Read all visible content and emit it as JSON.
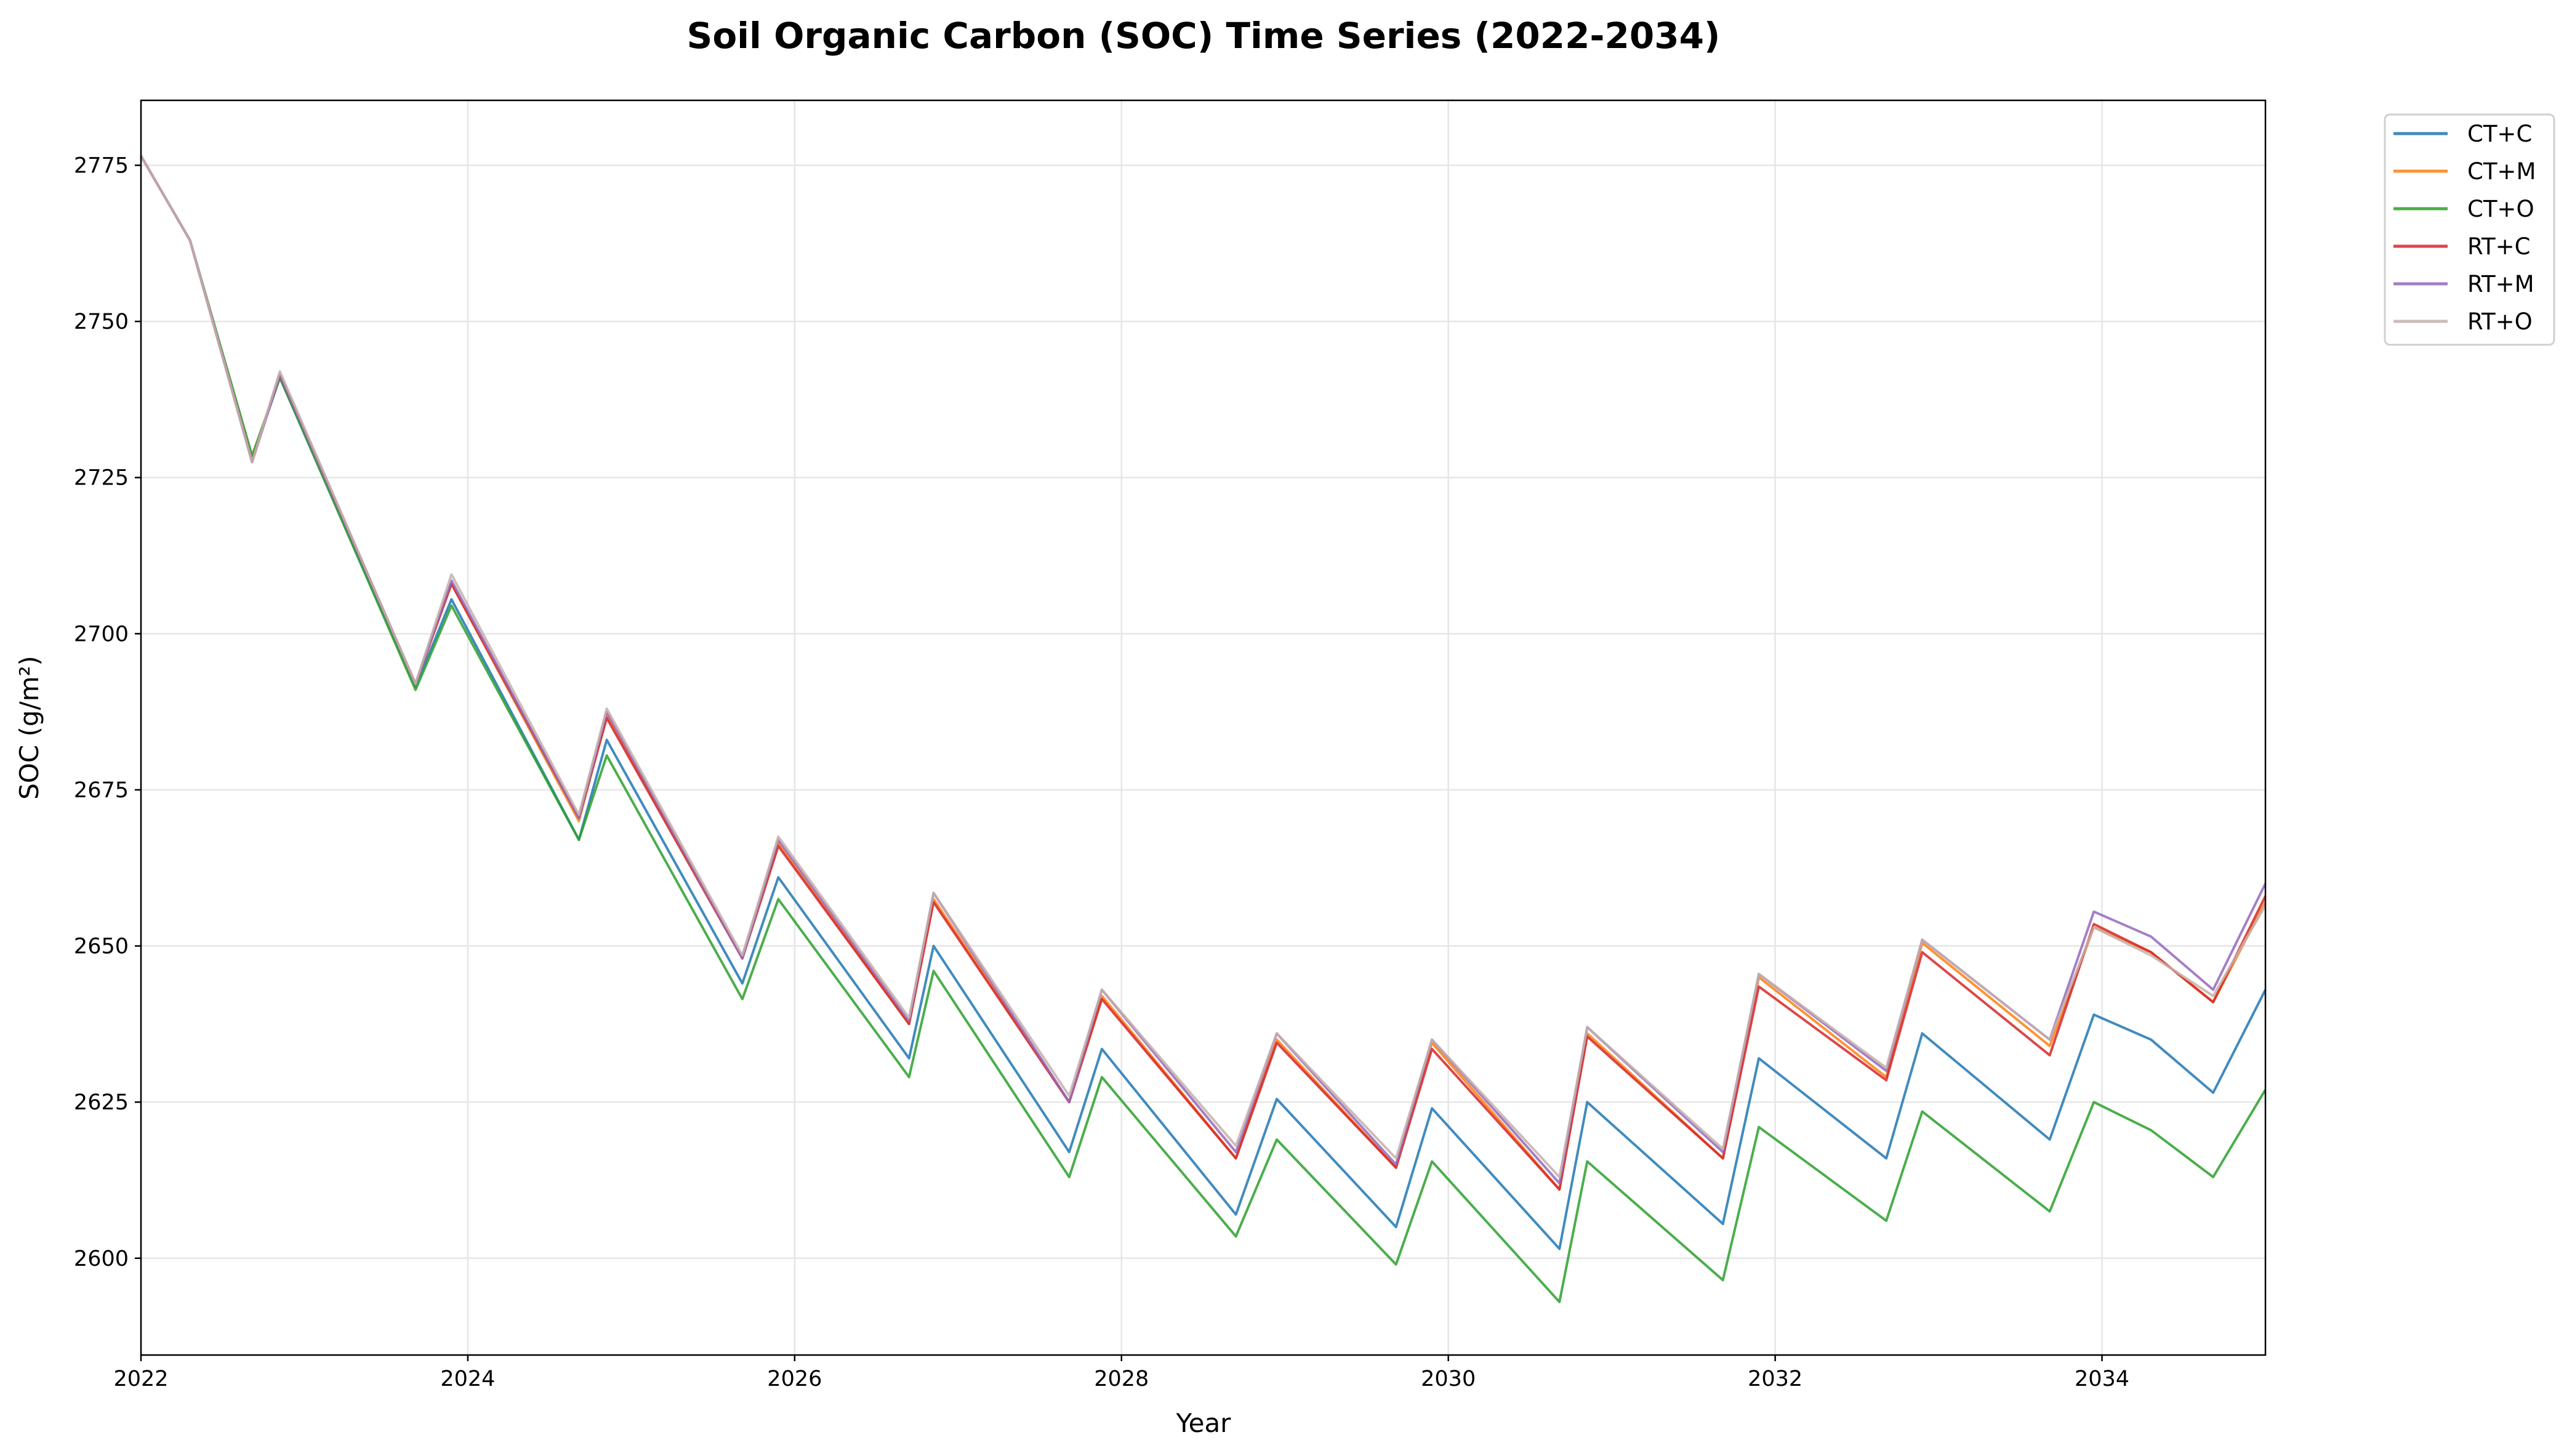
{
  "chart_data": {
    "type": "line",
    "title": "Soil Organic Carbon (SOC) Time Series (2022-2034)",
    "xlabel": "Year",
    "ylabel": "SOC (g/m²)",
    "xlim": [
      2022,
      2035
    ],
    "ylim": [
      2584.5,
      2785.4
    ],
    "xticks": [
      "2022",
      "2024",
      "2026",
      "2028",
      "2030",
      "2032",
      "2034"
    ],
    "yticks": [
      "2600",
      "2625",
      "2650",
      "2675",
      "2700",
      "2725",
      "2750",
      "2775"
    ],
    "grid": true,
    "legend_position": "outside-top-right",
    "x": [
      2022,
      2022.3,
      2022.68,
      2022.85,
      2023.68,
      2023.9,
      2024.68,
      2024.85,
      2025.68,
      2025.9,
      2026.7,
      2026.85,
      2027.68,
      2027.88,
      2028.7,
      2028.95,
      2029.68,
      2029.9,
      2030.68,
      2030.85,
      2031.68,
      2031.9,
      2032.68,
      2032.9,
      2033.68,
      2033.95,
      2034.3,
      2034.68,
      2035
    ],
    "series": [
      {
        "name": "CT+C",
        "color": "#1f77b4",
        "values": [
          2776.5,
          2763,
          2728,
          2741,
          2691.5,
          2705.5,
          2667,
          2683,
          2644,
          2661,
          2632,
          2650,
          2617,
          2633.5,
          2607,
          2625.5,
          2605,
          2624,
          2601.5,
          2625,
          2605.5,
          2632,
          2616,
          2636,
          2619,
          2639,
          2635,
          2626.5,
          2643
        ]
      },
      {
        "name": "CT+M",
        "color": "#ff7f0e",
        "values": [
          2776.5,
          2763,
          2728,
          2741.5,
          2692,
          2708,
          2670,
          2687,
          2648,
          2666.5,
          2637.5,
          2657.5,
          2625,
          2642,
          2616,
          2635,
          2614.5,
          2634.5,
          2611,
          2636,
          2616,
          2645,
          2629,
          2650.5,
          2634,
          2653,
          2649,
          2641,
          2657
        ]
      },
      {
        "name": "CT+O",
        "color": "#2ca02c",
        "values": [
          2776.5,
          2763,
          2728.5,
          2741,
          2691,
          2704.5,
          2667,
          2680.5,
          2641.5,
          2657.5,
          2629,
          2646,
          2613,
          2629,
          2603.5,
          2619,
          2599,
          2615.5,
          2593,
          2615.5,
          2596.5,
          2621,
          2606,
          2623.5,
          2607.5,
          2625,
          2620.5,
          2613,
          2627
        ]
      },
      {
        "name": "RT+C",
        "color": "#d62728",
        "values": [
          2776.5,
          2763,
          2727.5,
          2741.5,
          2692,
          2708,
          2670.5,
          2686.5,
          2648,
          2666,
          2637.5,
          2657,
          2625,
          2641.5,
          2616,
          2634.5,
          2614.5,
          2633.5,
          2611,
          2635.5,
          2616,
          2643.5,
          2628.5,
          2649,
          2632.5,
          2653.5,
          2649,
          2641,
          2658
        ]
      },
      {
        "name": "RT+M",
        "color": "#9467bd",
        "values": [
          2776.5,
          2763,
          2727.5,
          2741.5,
          2692,
          2708.5,
          2670.5,
          2687.5,
          2648,
          2667,
          2638,
          2658.5,
          2625,
          2643,
          2617,
          2636,
          2615,
          2635,
          2612,
          2637,
          2617,
          2645.5,
          2630,
          2651,
          2635,
          2655.5,
          2651.5,
          2643,
          2660
        ]
      },
      {
        "name": "RT+O",
        "color": "#c5b0ad",
        "values": [
          2776.5,
          2763,
          2727.5,
          2742,
          2692,
          2709.5,
          2671,
          2688,
          2648.5,
          2667.5,
          2638.5,
          2658.5,
          2626,
          2643,
          2618,
          2636,
          2616,
          2635,
          2613,
          2637,
          2617.5,
          2645.5,
          2630.5,
          2651,
          2635,
          2653,
          2648.5,
          2642,
          2656.5
        ]
      }
    ]
  }
}
